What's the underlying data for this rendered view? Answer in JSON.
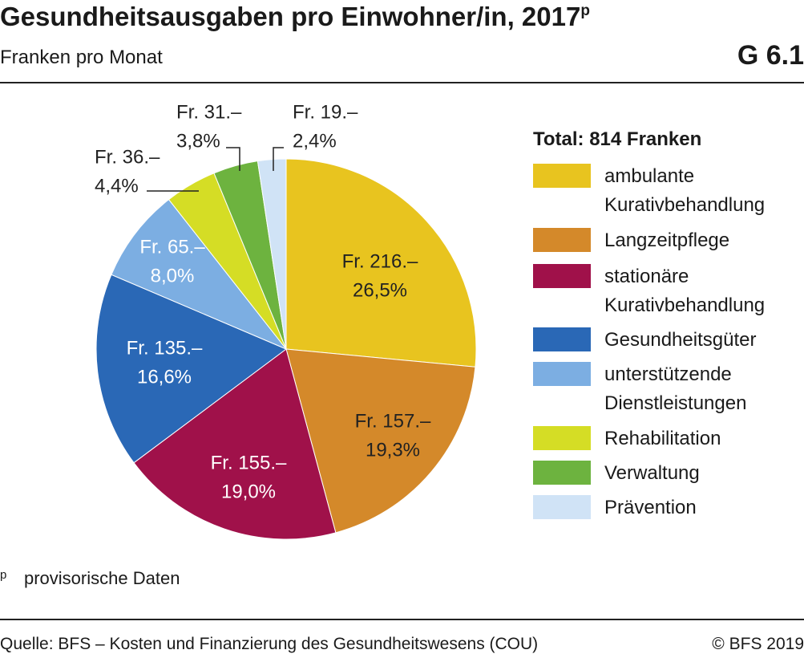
{
  "chart_data": {
    "type": "pie",
    "title": "Gesundheitsausgaben pro Einwohner/in, 2017",
    "title_marker": "p",
    "subtitle": "Franken pro Monat",
    "chart_code": "G 6.1",
    "legend_title": "Total: 814 Franken",
    "categories": [
      "ambulante Kurativbehandlung",
      "Langzeitpflege",
      "stationäre Kurativbehandlung",
      "Gesundheitsgüter",
      "unterstützende Dienstleistungen",
      "Rehabilitation",
      "Verwaltung",
      "Prävention"
    ],
    "colors": [
      "#e8c41f",
      "#d4892a",
      "#a0114a",
      "#2a68b6",
      "#7caee2",
      "#d5dd25",
      "#6db33f",
      "#d0e3f6"
    ],
    "values": [
      26.5,
      19.3,
      19.0,
      16.6,
      8.0,
      4.4,
      3.8,
      2.4
    ],
    "value_labels": [
      "26,5%",
      "19,3%",
      "19,0%",
      "16,6%",
      "8,0%",
      "4,4%",
      "3,8%",
      "2,4%"
    ],
    "amounts": [
      216,
      157,
      155,
      135,
      65,
      36,
      31,
      19
    ],
    "amount_labels": [
      "Fr. 216.–",
      "Fr. 157.–",
      "Fr. 155.–",
      "Fr. 135.–",
      "Fr. 65.–",
      "Fr. 36.–",
      "Fr. 31.–",
      "Fr. 19.–"
    ],
    "footnote_marker": "p",
    "footnote": "provisorische Daten",
    "source": "Quelle: BFS – Kosten und Finanzierung des Gesundheitswesens (COU)",
    "copyright": "© BFS 2019"
  }
}
